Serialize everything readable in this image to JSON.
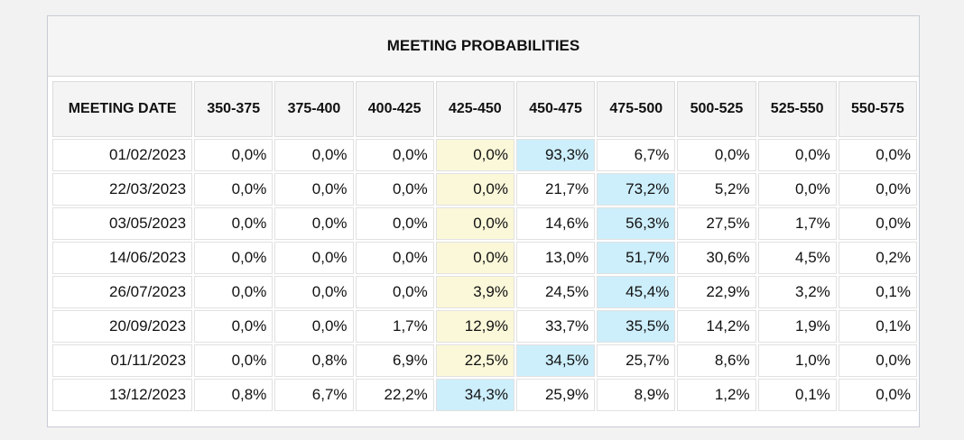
{
  "chart_data": {
    "type": "table",
    "title": "MEETING PROBABILITIES",
    "columns": [
      "MEETING DATE",
      "350-375",
      "375-400",
      "400-425",
      "425-450",
      "450-475",
      "475-500",
      "500-525",
      "525-550",
      "550-575"
    ],
    "rows": [
      [
        "01/02/2023",
        "0,0%",
        "0,0%",
        "0,0%",
        "0,0%",
        "93,3%",
        "6,7%",
        "0,0%",
        "0,0%",
        "0,0%"
      ],
      [
        "22/03/2023",
        "0,0%",
        "0,0%",
        "0,0%",
        "0,0%",
        "21,7%",
        "73,2%",
        "5,2%",
        "0,0%",
        "0,0%"
      ],
      [
        "03/05/2023",
        "0,0%",
        "0,0%",
        "0,0%",
        "0,0%",
        "14,6%",
        "56,3%",
        "27,5%",
        "1,7%",
        "0,0%"
      ],
      [
        "14/06/2023",
        "0,0%",
        "0,0%",
        "0,0%",
        "0,0%",
        "13,0%",
        "51,7%",
        "30,6%",
        "4,5%",
        "0,2%"
      ],
      [
        "26/07/2023",
        "0,0%",
        "0,0%",
        "0,0%",
        "3,9%",
        "24,5%",
        "45,4%",
        "22,9%",
        "3,2%",
        "0,1%"
      ],
      [
        "20/09/2023",
        "0,0%",
        "0,0%",
        "1,7%",
        "12,9%",
        "33,7%",
        "35,5%",
        "14,2%",
        "1,9%",
        "0,1%"
      ],
      [
        "01/11/2023",
        "0,0%",
        "0,8%",
        "6,9%",
        "22,5%",
        "34,5%",
        "25,7%",
        "8,6%",
        "1,0%",
        "0,0%"
      ],
      [
        "13/12/2023",
        "0,8%",
        "6,7%",
        "22,2%",
        "34,3%",
        "25,9%",
        "8,9%",
        "1,2%",
        "0,1%",
        "0,0%"
      ]
    ],
    "current_range_column": 4,
    "highlight_cells": [
      [
        0,
        5
      ],
      [
        1,
        6
      ],
      [
        2,
        6
      ],
      [
        3,
        6
      ],
      [
        4,
        6
      ],
      [
        5,
        6
      ],
      [
        6,
        5
      ],
      [
        7,
        4
      ]
    ],
    "colors": {
      "current_range": "#fbf8d9",
      "highlight": "#cdeefb",
      "header_bg": "#f4f4f4",
      "border": "#dcdcdc"
    }
  }
}
